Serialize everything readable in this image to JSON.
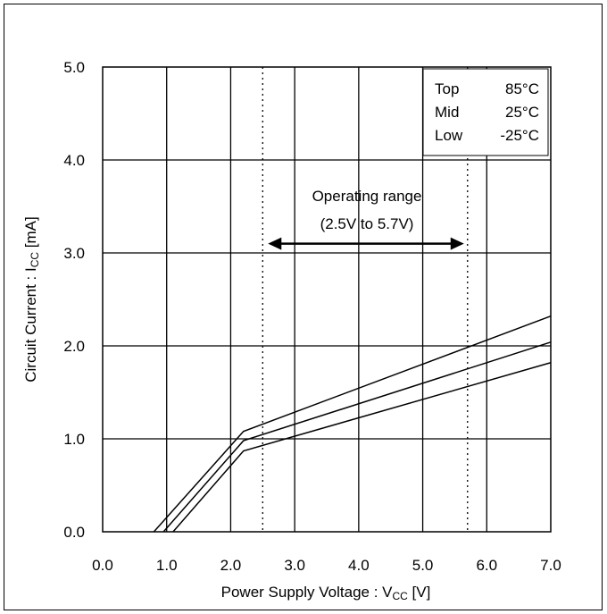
{
  "chart_data": {
    "type": "line",
    "xlabel": "Power Supply Voltage : V",
    "xlabel_sub": "CC",
    "xlabel_unit": " [V]",
    "ylabel": "Circuit Current : I",
    "ylabel_sub": "CC",
    "ylabel_unit": " [mA]",
    "xlim": [
      0.0,
      7.0
    ],
    "ylim": [
      0.0,
      5.0
    ],
    "x_ticks": [
      "0.0",
      "1.0",
      "2.0",
      "3.0",
      "4.0",
      "5.0",
      "6.0",
      "7.0"
    ],
    "y_ticks": [
      "0.0",
      "1.0",
      "2.0",
      "3.0",
      "4.0",
      "5.0"
    ],
    "grid": true,
    "legend": {
      "position": "top-right",
      "entries": [
        {
          "name": "Top",
          "temp": "85°C"
        },
        {
          "name": "Mid",
          "temp": "25°C"
        },
        {
          "name": "Low",
          "temp": "-25°C"
        }
      ]
    },
    "series": [
      {
        "name": "Top",
        "points": [
          [
            0.8,
            0.0
          ],
          [
            2.2,
            1.08
          ],
          [
            7.0,
            2.32
          ]
        ]
      },
      {
        "name": "Mid",
        "points": [
          [
            0.95,
            0.0
          ],
          [
            2.2,
            0.98
          ],
          [
            7.0,
            2.04
          ]
        ]
      },
      {
        "name": "Low",
        "points": [
          [
            1.1,
            0.0
          ],
          [
            2.2,
            0.87
          ],
          [
            7.0,
            1.82
          ]
        ]
      }
    ],
    "operating_range": {
      "label": "Operating range",
      "sublabel": "(2.5V to 5.7V)",
      "min": 2.5,
      "max": 5.7,
      "arrow_y": 3.1
    }
  }
}
